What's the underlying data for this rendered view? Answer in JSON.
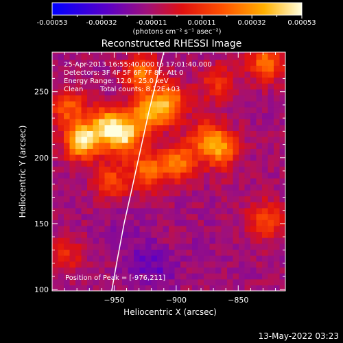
{
  "colorbar": {
    "ticks": [
      "-0.00053",
      "-0.00032",
      "-0.00011",
      "0.00011",
      "0.00032",
      "0.00053"
    ],
    "units": "(photons cm⁻² s⁻¹ asec⁻²)",
    "min": -0.00053,
    "max": 0.00053
  },
  "plot": {
    "title": "Reconstructed RHESSI Image",
    "xlabel": "Heliocentric X (arcsec)",
    "ylabel": "Heliocentric Y (arcsec)",
    "info_lines": [
      "25-Apr-2013 16:55:40.000 to 17:01:40.000",
      "Detectors: 3F 4F 5F 6F 7F 8F, Att 0",
      "Energy Range: 12.0 - 25.0 keV"
    ],
    "clean_label": "Clean",
    "total_counts": "Total counts: 8.12E+03",
    "peak_label": "Position of Peak = [-976,211]"
  },
  "footer": {
    "date": "13-May-2022 03:23"
  },
  "chart_data": {
    "type": "heatmap",
    "title": "Reconstructed RHESSI Image",
    "xlabel": "Heliocentric X (arcsec)",
    "ylabel": "Heliocentric Y (arcsec)",
    "xlim": [
      -1000,
      -812
    ],
    "ylim": [
      99,
      280
    ],
    "xticks": [
      -950,
      -900,
      -850
    ],
    "yticks": [
      100,
      150,
      200,
      250
    ],
    "colormap": "blue-purple-red-yellow-white (IDL color table 5 style)",
    "value_range": [
      -0.00053,
      0.00053
    ],
    "peak_position": [
      -976,
      211
    ],
    "limb_curve": [
      [
        -952,
        99
      ],
      [
        -948,
        120
      ],
      [
        -942,
        150
      ],
      [
        -936,
        175
      ],
      [
        -929,
        205
      ],
      [
        -922,
        235
      ],
      [
        -915,
        262
      ],
      [
        -910,
        280
      ]
    ],
    "hot_regions": [
      {
        "x": -978,
        "y": 211,
        "value": 0.00053
      },
      {
        "x": -958,
        "y": 222,
        "value": 0.0004
      },
      {
        "x": -944,
        "y": 215,
        "value": 0.00045
      },
      {
        "x": -925,
        "y": 232,
        "value": 0.00038
      },
      {
        "x": -908,
        "y": 240,
        "value": 0.00033
      },
      {
        "x": -930,
        "y": 262,
        "value": 0.00028
      },
      {
        "x": -900,
        "y": 195,
        "value": 0.00028
      },
      {
        "x": -878,
        "y": 213,
        "value": 0.00022
      },
      {
        "x": -866,
        "y": 204,
        "value": 0.00028
      },
      {
        "x": -925,
        "y": 188,
        "value": 0.00028
      },
      {
        "x": -955,
        "y": 180,
        "value": 0.00018
      },
      {
        "x": -990,
        "y": 236,
        "value": 0.00022
      },
      {
        "x": -830,
        "y": 270,
        "value": 0.00028
      },
      {
        "x": -830,
        "y": 150,
        "value": 0.0002
      },
      {
        "x": -870,
        "y": 255,
        "value": 0.00012
      },
      {
        "x": -992,
        "y": 125,
        "value": 0.0001
      }
    ],
    "cold_regions": [
      {
        "x": -930,
        "y": 122,
        "value": -0.00028
      },
      {
        "x": -912,
        "y": 112,
        "value": -0.00022
      },
      {
        "x": -945,
        "y": 150,
        "value": -0.00018
      },
      {
        "x": -880,
        "y": 130,
        "value": -0.00015
      },
      {
        "x": -855,
        "y": 175,
        "value": -0.0001
      }
    ]
  }
}
